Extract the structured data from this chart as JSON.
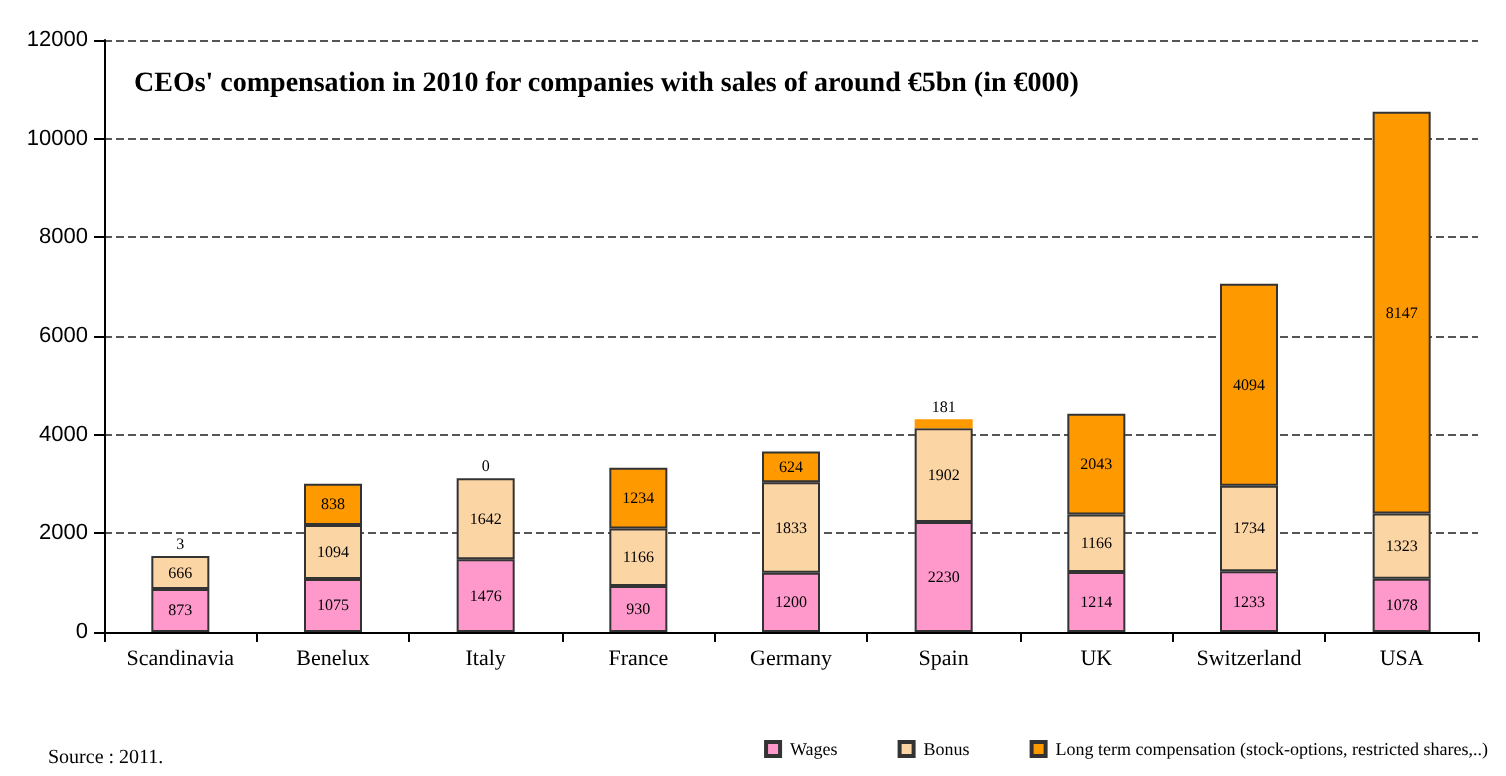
{
  "chart_data": {
    "type": "bar",
    "title": "CEOs' compensation in 2010 for companies with sales of around €5bn (in €000)",
    "categories": [
      "Scandinavia",
      "Benelux",
      "Italy",
      "France",
      "Germany",
      "Spain",
      "UK",
      "Switzerland",
      "USA"
    ],
    "series": [
      {
        "name": "Wages",
        "color": "#ff99cc",
        "values": [
          873,
          1075,
          1476,
          930,
          1200,
          2230,
          1214,
          1233,
          1078
        ]
      },
      {
        "name": "Bonus",
        "color": "#fcd5a5",
        "values": [
          666,
          1094,
          1642,
          1166,
          1833,
          1902,
          1166,
          1734,
          1323
        ]
      },
      {
        "name": "Long term compensation (stock-options, restricted shares,..)",
        "color": "#ff9900",
        "values": [
          3,
          838,
          0,
          1234,
          624,
          181,
          2043,
          4094,
          8147
        ]
      }
    ],
    "stacked": true,
    "data_labels": true,
    "ylim": [
      0,
      12000
    ],
    "yticks": [
      0,
      2000,
      4000,
      6000,
      8000,
      10000,
      12000
    ],
    "grid": "y",
    "legend": "bottom right",
    "annotations": [
      "Source : 2011."
    ]
  }
}
